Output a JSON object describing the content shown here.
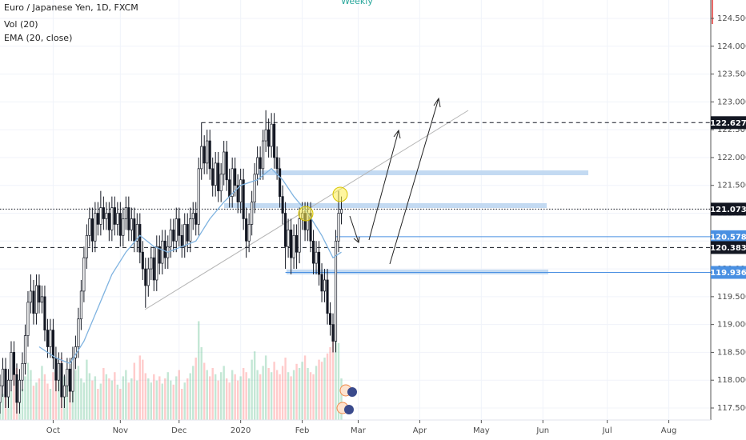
{
  "chart_data": {
    "type": "candlestick",
    "title": "Euro / Japanese Yen, 1D, FXCM",
    "volume_label": "Vol (20)",
    "interval_label": "Weekly",
    "x": [
      0,
      1,
      2,
      3,
      4,
      5,
      6,
      7,
      8,
      9,
      10,
      11,
      12,
      13,
      14,
      15,
      16,
      17,
      18,
      19,
      20,
      21,
      22,
      23,
      24,
      25,
      26,
      27,
      28,
      29,
      30,
      31,
      32,
      33,
      34,
      35,
      36,
      37,
      38,
      39,
      40,
      41,
      42,
      43,
      44,
      45,
      46,
      47,
      48,
      49,
      50,
      51,
      52,
      53,
      54,
      55,
      56,
      57,
      58,
      59,
      60,
      61,
      62,
      63,
      64,
      65,
      66,
      67,
      68,
      69,
      70,
      71,
      72,
      73,
      74,
      75,
      76,
      77,
      78,
      79,
      80,
      81,
      82,
      83,
      84,
      85,
      86,
      87,
      88,
      89,
      90,
      91,
      92,
      93,
      94,
      95,
      96,
      97,
      98,
      99,
      100,
      101,
      102,
      103,
      104,
      105,
      106,
      107,
      108,
      109,
      110,
      111,
      112,
      113,
      114,
      115,
      116,
      117,
      118,
      119,
      120,
      121,
      122
    ],
    "ohlc": [
      [
        117.6,
        118.1,
        117.4,
        117.9
      ],
      [
        117.9,
        118.4,
        117.7,
        118.2
      ],
      [
        118.2,
        118.4,
        117.5,
        117.7
      ],
      [
        117.7,
        118.2,
        117.5,
        118.0
      ],
      [
        118.0,
        118.7,
        117.8,
        118.5
      ],
      [
        118.5,
        118.7,
        117.9,
        118.1
      ],
      [
        118.1,
        118.3,
        117.4,
        117.6
      ],
      [
        117.6,
        118.2,
        117.4,
        118.0
      ],
      [
        118.0,
        118.5,
        117.8,
        118.3
      ],
      [
        118.3,
        119.0,
        118.1,
        118.8
      ],
      [
        118.8,
        119.6,
        118.6,
        119.4
      ],
      [
        119.4,
        119.9,
        119.2,
        119.6
      ],
      [
        119.6,
        119.8,
        119.0,
        119.2
      ],
      [
        119.2,
        119.9,
        119.0,
        119.7
      ],
      [
        119.7,
        119.9,
        119.2,
        119.4
      ],
      [
        119.4,
        119.7,
        119.2,
        119.5
      ],
      [
        119.5,
        119.7,
        118.7,
        118.9
      ],
      [
        118.9,
        119.1,
        118.4,
        118.6
      ],
      [
        118.6,
        119.1,
        118.4,
        118.9
      ],
      [
        118.9,
        119.1,
        118.2,
        118.4
      ],
      [
        118.4,
        118.6,
        117.8,
        118.0
      ],
      [
        118.0,
        118.5,
        117.8,
        118.3
      ],
      [
        118.3,
        118.5,
        117.5,
        117.7
      ],
      [
        117.7,
        118.1,
        117.5,
        117.9
      ],
      [
        117.9,
        118.4,
        117.7,
        118.2
      ],
      [
        118.2,
        118.4,
        117.6,
        117.8
      ],
      [
        117.8,
        118.6,
        117.6,
        118.4
      ],
      [
        118.4,
        118.8,
        118.2,
        118.6
      ],
      [
        118.6,
        119.3,
        118.4,
        119.1
      ],
      [
        119.1,
        119.8,
        118.9,
        119.6
      ],
      [
        119.6,
        120.4,
        119.4,
        120.2
      ],
      [
        120.2,
        120.8,
        120.0,
        120.6
      ],
      [
        120.6,
        121.1,
        120.4,
        120.9
      ],
      [
        120.9,
        121.1,
        120.3,
        120.5
      ],
      [
        120.5,
        121.2,
        120.3,
        121.0
      ],
      [
        121.0,
        121.2,
        120.6,
        120.8
      ],
      [
        120.8,
        121.4,
        120.6,
        121.1
      ],
      [
        121.1,
        121.3,
        120.7,
        120.9
      ],
      [
        120.9,
        121.2,
        120.7,
        121.0
      ],
      [
        121.0,
        121.2,
        120.5,
        120.7
      ],
      [
        120.7,
        121.3,
        120.5,
        121.1
      ],
      [
        121.1,
        121.3,
        120.6,
        120.8
      ],
      [
        120.8,
        121.2,
        120.6,
        121.0
      ],
      [
        121.0,
        121.2,
        120.4,
        120.6
      ],
      [
        120.6,
        121.1,
        120.4,
        120.9
      ],
      [
        120.9,
        121.3,
        120.7,
        121.1
      ],
      [
        121.1,
        121.3,
        120.5,
        120.7
      ],
      [
        120.7,
        121.1,
        120.5,
        120.9
      ],
      [
        120.9,
        121.1,
        120.3,
        120.5
      ],
      [
        120.5,
        121.0,
        120.3,
        120.8
      ],
      [
        120.8,
        121.0,
        120.1,
        120.3
      ],
      [
        120.3,
        120.5,
        119.8,
        120.0
      ],
      [
        120.0,
        120.2,
        119.3,
        119.7
      ],
      [
        119.7,
        120.2,
        119.5,
        120.0
      ],
      [
        120.0,
        120.4,
        119.8,
        120.2
      ],
      [
        120.2,
        120.4,
        119.6,
        119.8
      ],
      [
        119.8,
        120.6,
        119.6,
        120.4
      ],
      [
        120.4,
        120.6,
        119.9,
        120.1
      ],
      [
        120.1,
        120.7,
        119.9,
        120.5
      ],
      [
        120.5,
        120.7,
        120.0,
        120.2
      ],
      [
        120.2,
        120.6,
        120.0,
        120.4
      ],
      [
        120.4,
        120.9,
        120.2,
        120.7
      ],
      [
        120.7,
        120.9,
        120.3,
        120.5
      ],
      [
        120.5,
        121.1,
        120.3,
        120.9
      ],
      [
        120.9,
        121.1,
        120.4,
        120.6
      ],
      [
        120.6,
        120.8,
        120.2,
        120.4
      ],
      [
        120.4,
        121.0,
        120.2,
        120.8
      ],
      [
        120.8,
        121.0,
        120.3,
        120.5
      ],
      [
        120.5,
        121.1,
        120.3,
        120.9
      ],
      [
        120.9,
        121.2,
        120.7,
        121.0
      ],
      [
        121.0,
        121.2,
        120.6,
        120.8
      ],
      [
        120.8,
        122.0,
        120.6,
        121.8
      ],
      [
        121.8,
        122.63,
        121.6,
        122.2
      ],
      [
        122.2,
        122.4,
        121.7,
        121.9
      ],
      [
        121.9,
        122.5,
        121.7,
        122.3
      ],
      [
        122.3,
        122.5,
        121.6,
        121.8
      ],
      [
        121.8,
        122.0,
        121.3,
        121.5
      ],
      [
        121.5,
        122.1,
        121.3,
        121.9
      ],
      [
        121.9,
        122.1,
        121.2,
        121.4
      ],
      [
        121.4,
        121.9,
        121.2,
        121.7
      ],
      [
        121.7,
        122.3,
        121.5,
        122.1
      ],
      [
        122.1,
        122.3,
        121.4,
        121.6
      ],
      [
        121.6,
        121.8,
        121.1,
        121.3
      ],
      [
        121.3,
        122.0,
        121.1,
        121.8
      ],
      [
        121.8,
        122.0,
        121.3,
        121.5
      ],
      [
        121.5,
        121.7,
        121.0,
        121.2
      ],
      [
        121.2,
        121.8,
        121.0,
        121.6
      ],
      [
        121.6,
        121.8,
        120.7,
        120.9
      ],
      [
        120.9,
        121.1,
        120.2,
        120.5
      ],
      [
        120.5,
        121.0,
        120.3,
        120.8
      ],
      [
        120.8,
        121.4,
        120.6,
        121.2
      ],
      [
        121.2,
        121.9,
        121.0,
        121.7
      ],
      [
        121.7,
        122.2,
        121.5,
        122.0
      ],
      [
        122.0,
        122.2,
        121.6,
        121.8
      ],
      [
        121.8,
        122.5,
        121.6,
        122.3
      ],
      [
        122.3,
        122.85,
        122.1,
        122.5
      ],
      [
        122.5,
        122.7,
        122.0,
        122.2
      ],
      [
        122.2,
        122.8,
        122.0,
        122.6
      ],
      [
        122.6,
        122.8,
        121.8,
        122.0
      ],
      [
        122.0,
        122.2,
        121.6,
        121.8
      ],
      [
        121.8,
        122.0,
        121.1,
        121.3
      ],
      [
        121.3,
        121.5,
        120.8,
        121.0
      ],
      [
        121.0,
        121.2,
        120.0,
        120.4
      ],
      [
        120.4,
        120.9,
        120.2,
        120.7
      ],
      [
        120.7,
        120.9,
        119.9,
        120.2
      ],
      [
        120.2,
        120.8,
        120.0,
        120.6
      ],
      [
        120.6,
        120.8,
        120.0,
        120.3
      ],
      [
        120.3,
        121.1,
        120.1,
        120.9
      ],
      [
        120.9,
        121.2,
        120.7,
        121.0
      ],
      [
        121.0,
        121.2,
        120.5,
        120.7
      ],
      [
        120.7,
        121.2,
        120.5,
        121.0
      ],
      [
        121.0,
        121.2,
        120.3,
        120.5
      ],
      [
        120.5,
        120.7,
        119.9,
        120.1
      ],
      [
        120.1,
        120.5,
        119.9,
        120.3
      ],
      [
        120.3,
        120.5,
        119.7,
        119.9
      ],
      [
        119.9,
        120.1,
        119.4,
        119.6
      ],
      [
        119.6,
        120.0,
        119.4,
        119.8
      ],
      [
        119.8,
        120.0,
        119.0,
        119.2
      ],
      [
        119.2,
        119.4,
        118.8,
        119.0
      ],
      [
        119.0,
        119.2,
        118.5,
        118.7
      ],
      [
        118.7,
        120.7,
        118.5,
        120.5
      ],
      [
        120.5,
        121.4,
        120.3,
        121.0
      ],
      [
        121.0,
        121.3,
        120.8,
        121.07
      ]
    ],
    "volume": [
      30,
      25,
      40,
      35,
      28,
      45,
      50,
      38,
      30,
      42,
      55,
      48,
      33,
      36,
      40,
      52,
      44,
      35,
      30,
      46,
      50,
      38,
      60,
      42,
      35,
      30,
      44,
      48,
      52,
      40,
      36,
      58,
      45,
      38,
      42,
      30,
      35,
      50,
      44,
      40,
      38,
      46,
      34,
      30,
      42,
      48,
      36,
      40,
      55,
      38,
      62,
      58,
      45,
      40,
      36,
      44,
      38,
      42,
      35,
      40,
      46,
      38,
      34,
      42,
      48,
      30,
      36,
      40,
      45,
      52,
      60,
      95,
      70,
      55,
      48,
      42,
      50,
      44,
      38,
      46,
      52,
      40,
      36,
      48,
      44,
      38,
      42,
      50,
      46,
      40,
      58,
      66,
      48,
      44,
      52,
      62,
      50,
      46,
      56,
      48,
      44,
      52,
      60,
      46,
      42,
      48,
      54,
      50,
      56,
      62,
      50,
      46,
      44,
      52,
      58,
      56,
      60,
      64,
      70,
      80,
      88,
      74,
      40
    ],
    "ema": {
      "name": "EMA (20, close)",
      "color": "#7fb3e0",
      "x": [
        14,
        20,
        25,
        30,
        35,
        40,
        45,
        50,
        55,
        60,
        65,
        70,
        75,
        80,
        86,
        92,
        97,
        101,
        105,
        110,
        115,
        119,
        122
      ],
      "values": [
        118.6,
        118.4,
        118.3,
        118.7,
        119.3,
        119.9,
        120.3,
        120.6,
        120.4,
        120.3,
        120.4,
        120.5,
        120.9,
        121.2,
        121.5,
        121.6,
        121.8,
        121.6,
        121.3,
        121.0,
        120.6,
        120.2,
        120.3
      ]
    },
    "up_color": "#ffffff",
    "down_color": "#131722",
    "price_lines": [
      {
        "value": 122.627,
        "color": "#131722",
        "style": "dashed",
        "from": 72
      },
      {
        "value": 121.073,
        "color": "#131722",
        "style": "dotted"
      },
      {
        "value": 120.578,
        "color": "#4a90e2",
        "style": "solid",
        "from": 120
      },
      {
        "value": 120.383,
        "color": "#131722",
        "style": "dashed"
      },
      {
        "value": 119.936,
        "color": "#4a90e2",
        "style": "solid",
        "from": 102
      }
    ],
    "xlim": [
      0,
      254
    ],
    "ylim": [
      117.5,
      124.5
    ],
    "xticks": [
      {
        "value": 19,
        "label": "Oct"
      },
      {
        "value": 43,
        "label": "Nov"
      },
      {
        "value": 64,
        "label": "Dec"
      },
      {
        "value": 86,
        "label": "2020"
      },
      {
        "value": 108,
        "label": "Feb"
      },
      {
        "value": 128,
        "label": "Mar"
      },
      {
        "value": 150,
        "label": "Apr"
      },
      {
        "value": 172,
        "label": "May"
      },
      {
        "value": 194,
        "label": "Jun"
      },
      {
        "value": 217,
        "label": "Jul"
      },
      {
        "value": 239,
        "label": "Aug"
      }
    ],
    "yticks": [
      {
        "value": 117.5,
        "label": "117.500"
      },
      {
        "value": 118,
        "label": "118.000"
      },
      {
        "value": 118.5,
        "label": "118.500"
      },
      {
        "value": 119,
        "label": "119.000"
      },
      {
        "value": 119.5,
        "label": "119.500"
      },
      {
        "value": 120,
        "label": "120.000"
      },
      {
        "value": 120.5,
        "label": "120.500"
      },
      {
        "value": 121,
        "label": "121.000"
      },
      {
        "value": 121.5,
        "label": "121.500"
      },
      {
        "value": 122,
        "label": "122.000"
      },
      {
        "value": 122.5,
        "label": "122.500"
      },
      {
        "value": 123,
        "label": "123.000"
      },
      {
        "value": 123.5,
        "label": "123.500"
      },
      {
        "value": 124,
        "label": "124.000"
      },
      {
        "value": 124.5,
        "label": "124.500"
      }
    ],
    "grid": true
  }
}
